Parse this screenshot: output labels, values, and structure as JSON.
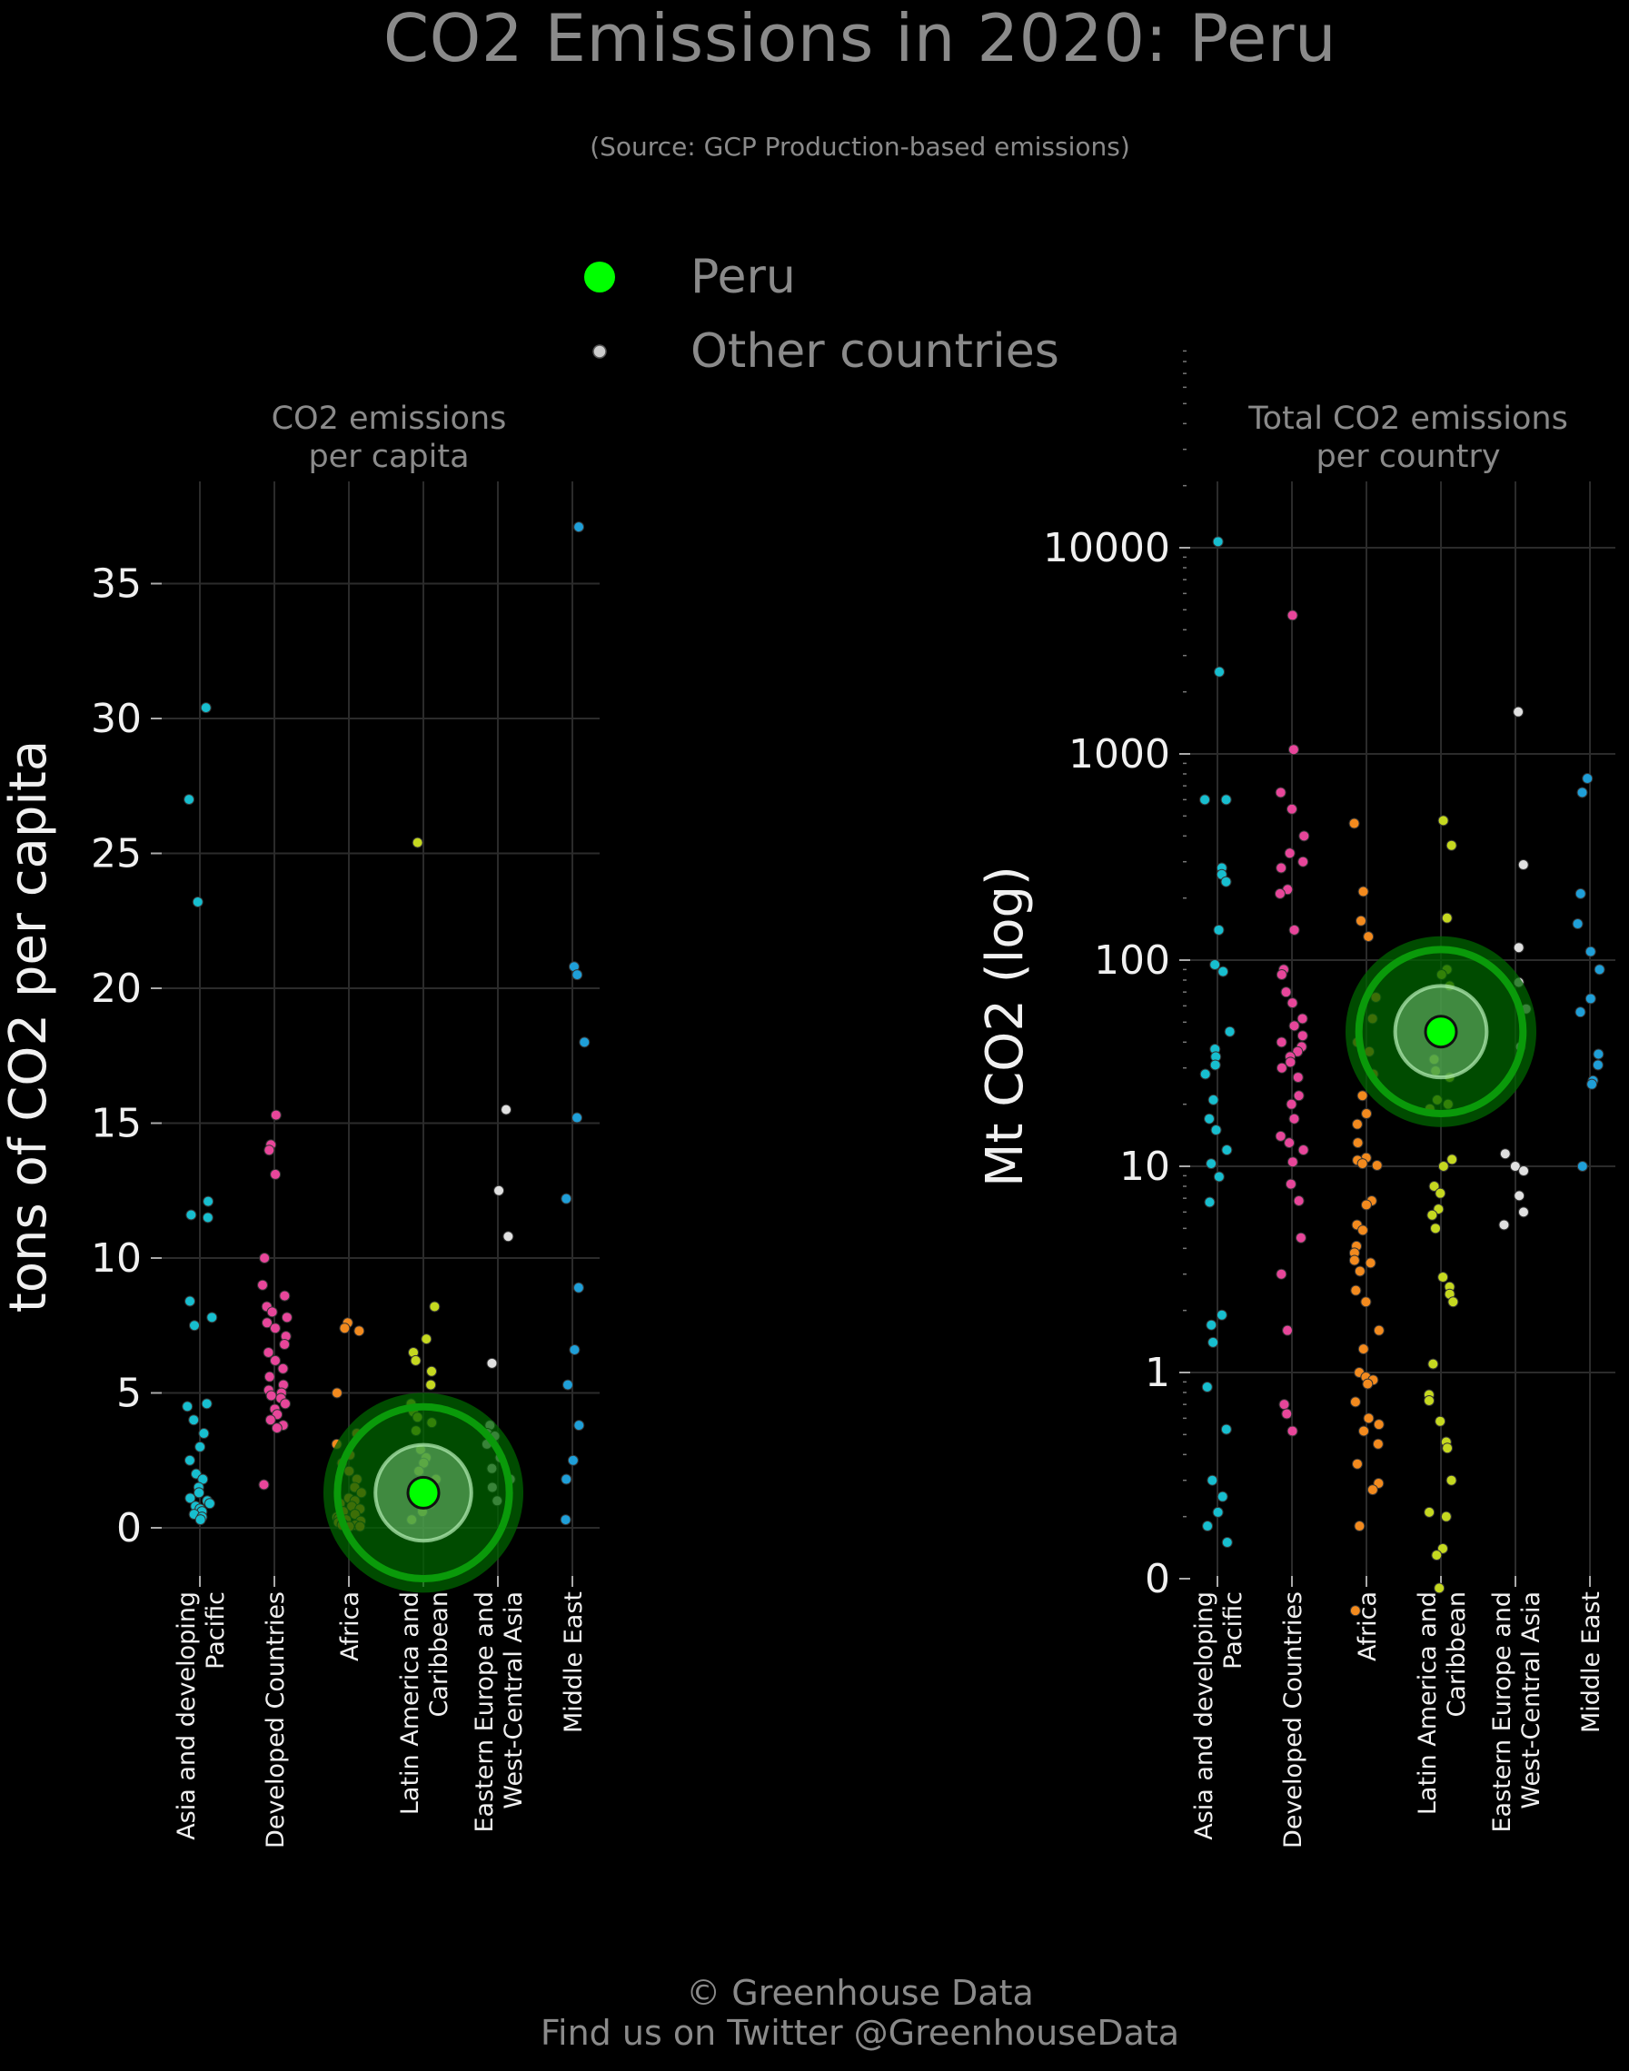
{
  "title": "CO2 Emissions in 2020: Peru",
  "subtitle": "(Source: GCP Production-based emissions)",
  "legend": [
    {
      "label": "Peru",
      "color": "#00ff00"
    },
    {
      "label": "Other countries",
      "color": "#cccccc"
    }
  ],
  "footer": {
    "line1": "© Greenhouse Data",
    "line2": "Find us on Twitter @GreenhouseData"
  },
  "region_colors": {
    "Asia and developing Pacific": "#17becf",
    "Developed Countries": "#e7469a",
    "Africa": "#f28a1e",
    "Latin America and Caribbean": "#c5d820",
    "Eastern Europe and West-Central Asia": "#e0e0e0",
    "Middle East": "#1f9fd8"
  },
  "chart_data": [
    {
      "type": "scatter",
      "title": "CO2 emissions\nper capita",
      "ylabel": "tons of CO2 per capita",
      "xlabel": "",
      "ylim": [
        -1.8,
        38.5
      ],
      "yticks": [
        "0",
        "5",
        "10",
        "15",
        "20",
        "25",
        "30",
        "35"
      ],
      "ytick_values": [
        0,
        5,
        10,
        15,
        20,
        25,
        30,
        35
      ],
      "categories": [
        "Asia and developing\nPacific",
        "Developed Countries",
        "Africa",
        "Latin America and\nCaribbean",
        "Eastern Europe and\nWest-Central Asia",
        "Middle East"
      ],
      "grid": true,
      "highlight": {
        "name": "Peru",
        "category": 3,
        "value": 1.3
      },
      "series": [
        {
          "values": [
            30.4,
            27.0,
            23.2,
            12.1,
            11.6,
            11.5,
            8.4,
            7.8,
            7.5,
            4.6,
            4.5,
            4.0,
            3.5,
            3.0,
            2.5,
            2.0,
            1.8,
            1.5,
            1.3,
            1.1,
            1.0,
            0.9,
            0.8,
            0.7,
            0.6,
            0.5,
            0.4,
            0.3
          ]
        },
        {
          "values": [
            15.3,
            14.2,
            14.0,
            13.1,
            10.0,
            9.0,
            8.6,
            8.2,
            8.0,
            7.8,
            7.6,
            7.4,
            7.1,
            6.8,
            6.5,
            6.2,
            5.9,
            5.6,
            5.3,
            5.1,
            5.0,
            4.9,
            4.8,
            4.6,
            4.4,
            4.2,
            4.0,
            3.8,
            3.7,
            1.6
          ]
        },
        {
          "values": [
            7.6,
            7.4,
            7.3,
            5.0,
            3.5,
            3.1,
            2.7,
            2.4,
            2.1,
            1.8,
            1.5,
            1.3,
            1.1,
            1.0,
            0.9,
            0.8,
            0.7,
            0.6,
            0.5,
            0.4,
            0.35,
            0.3,
            0.25,
            0.2,
            0.15,
            0.1,
            0.1,
            0.05,
            0.05
          ]
        },
        {
          "values": [
            25.4,
            8.2,
            7.0,
            6.5,
            6.2,
            5.8,
            5.3,
            4.6,
            4.3,
            4.1,
            3.9,
            3.6,
            2.9,
            2.6,
            2.4,
            2.1,
            1.8,
            1.5,
            1.2,
            0.9,
            0.6,
            0.3
          ]
        },
        {
          "values": [
            15.5,
            12.5,
            10.8,
            6.1,
            3.8,
            3.5,
            3.4,
            3.1,
            2.6,
            2.2,
            1.8,
            1.5,
            1.0
          ]
        },
        {
          "values": [
            37.1,
            20.8,
            20.5,
            18.0,
            15.2,
            12.2,
            8.9,
            6.6,
            5.3,
            3.8,
            2.5,
            1.8,
            0.3
          ]
        }
      ]
    },
    {
      "type": "scatter",
      "title": "Total CO2 emissions\nper country",
      "ylabel": "Mt CO2 (log)",
      "xlabel": "",
      "yscale": "log",
      "ylim": [
        0,
        20000
      ],
      "yticks": [
        "0",
        "1",
        "10",
        "100",
        "1000",
        "10000"
      ],
      "ytick_values": [
        0,
        1,
        10,
        100,
        1000,
        10000
      ],
      "categories": [
        "Asia and developing\nPacific",
        "Developed Countries",
        "Africa",
        "Latin America and\nCaribbean",
        "Eastern Europe and\nWest-Central Asia",
        "Middle East"
      ],
      "grid": true,
      "highlight": {
        "name": "Peru",
        "category": 3,
        "value": 45
      },
      "series": [
        {
          "values": [
            10700,
            2500,
            600,
            600,
            280,
            260,
            240,
            140,
            95,
            88,
            45,
            37,
            34,
            31,
            28,
            21,
            17,
            15,
            12,
            10.3,
            8.9,
            6.7,
            1.9,
            1.7,
            1.4,
            0.85,
            0.53,
            0.3,
            0.25,
            0.21,
            0.18,
            0.15
          ]
        },
        {
          "values": [
            4700,
            1050,
            650,
            540,
            400,
            330,
            300,
            280,
            220,
            210,
            140,
            90,
            85,
            70,
            62,
            52,
            48,
            43,
            40,
            38,
            36,
            34,
            32,
            30,
            27,
            22,
            20,
            17,
            14,
            13,
            12,
            10.5,
            8.2,
            6.8,
            4.5,
            3.0,
            1.6,
            0.7,
            0.63,
            0.52
          ]
        },
        {
          "values": [
            460,
            215,
            155,
            130,
            66,
            52,
            40,
            36,
            28,
            22,
            18,
            16,
            13,
            11,
            10.7,
            10.3,
            10.1,
            6.8,
            6.5,
            5.2,
            4.9,
            4.1,
            3.8,
            3.5,
            3.4,
            3.1,
            2.5,
            2.2,
            1.6,
            1.3,
            1.0,
            0.95,
            0.92,
            0.88,
            0.72,
            0.6,
            0.56,
            0.52,
            0.45,
            0.36,
            0.29,
            0.27,
            0.18,
            0.07
          ]
        },
        {
          "values": [
            475,
            360,
            160,
            90,
            85,
            75,
            42,
            33,
            29,
            27,
            21,
            20,
            19,
            10.8,
            10.0,
            8.0,
            7.4,
            6.2,
            5.8,
            5.0,
            2.9,
            2.6,
            2.4,
            2.2,
            1.1,
            0.78,
            0.73,
            0.58,
            0.46,
            0.43,
            0.3,
            0.21,
            0.2,
            0.14,
            0.13,
            0.09
          ]
        },
        {
          "values": [
            1600,
            290,
            115,
            78,
            58,
            38,
            11.5,
            10.0,
            9.5,
            7.2,
            6.0,
            5.2
          ]
        },
        {
          "values": [
            760,
            650,
            210,
            150,
            110,
            90,
            65,
            56,
            35,
            31,
            26,
            25,
            10
          ]
        }
      ]
    }
  ]
}
